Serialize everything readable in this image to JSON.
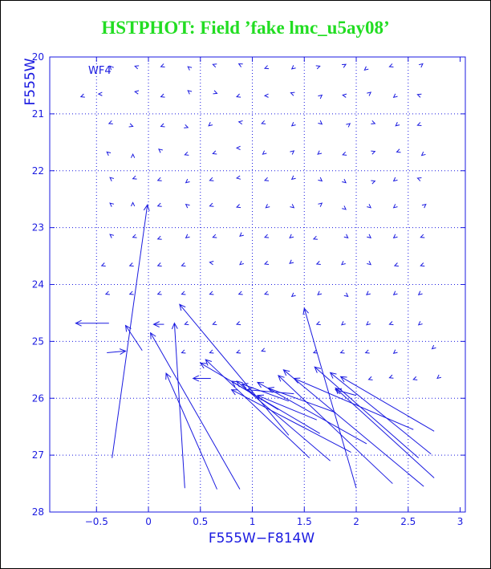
{
  "chart_data": {
    "type": "vector field",
    "title": "HSTPHOT: Field ’fake lmc_u5ay08’",
    "panel_label": "WF4",
    "xlabel": "F555W−F814W",
    "ylabel": "F555W",
    "xlim": [
      -0.95,
      3.05
    ],
    "ylim": [
      28,
      20
    ],
    "x_ticks": [
      -0.5,
      0,
      0.5,
      1,
      1.5,
      2,
      2.5,
      3
    ],
    "x_tick_labels": [
      "−0.5",
      "0",
      "0.5",
      "1",
      "1.5",
      "2",
      "2.5",
      "3"
    ],
    "y_ticks": [
      20,
      21,
      22,
      23,
      24,
      25,
      26,
      27,
      28
    ],
    "y_tick_labels": [
      "20",
      "21",
      "22",
      "23",
      "24",
      "25",
      "26",
      "27",
      "28"
    ],
    "grid": true,
    "grid_style": "dotted",
    "series_color": "#1a1ae0",
    "long_vectors": [
      {
        "x0": -0.35,
        "y0": 27.05,
        "x1": -0.01,
        "y1": 22.6
      },
      {
        "x0": -0.06,
        "y0": 25.16,
        "x1": -0.22,
        "y1": 24.72
      },
      {
        "x0": 0.35,
        "y0": 27.58,
        "x1": 0.25,
        "y1": 24.68
      },
      {
        "x0": 0.66,
        "y0": 27.6,
        "x1": 0.17,
        "y1": 25.56
      },
      {
        "x0": 0.88,
        "y0": 27.6,
        "x1": 0.02,
        "y1": 24.85
      },
      {
        "x0": 1.35,
        "y0": 26.65,
        "x1": 0.3,
        "y1": 24.35
      },
      {
        "x0": 1.65,
        "y0": 26.62,
        "x1": 0.5,
        "y1": 25.38
      },
      {
        "x0": 1.55,
        "y0": 27.05,
        "x1": 0.55,
        "y1": 25.32
      },
      {
        "x0": 1.75,
        "y0": 27.1,
        "x1": 0.85,
        "y1": 25.7
      },
      {
        "x0": 2.0,
        "y0": 27.58,
        "x1": 1.5,
        "y1": 24.42
      },
      {
        "x0": 1.95,
        "y0": 26.95,
        "x1": 0.8,
        "y1": 25.85
      },
      {
        "x0": 2.1,
        "y0": 26.8,
        "x1": 1.05,
        "y1": 25.72
      },
      {
        "x0": 2.35,
        "y0": 27.5,
        "x1": 1.25,
        "y1": 25.6
      },
      {
        "x0": 2.65,
        "y0": 27.55,
        "x1": 1.3,
        "y1": 25.5
      },
      {
        "x0": 2.55,
        "y0": 26.55,
        "x1": 1.4,
        "y1": 25.65
      },
      {
        "x0": 2.6,
        "y0": 27.05,
        "x1": 1.6,
        "y1": 25.45
      },
      {
        "x0": 2.72,
        "y0": 26.98,
        "x1": 1.75,
        "y1": 25.55
      },
      {
        "x0": 2.75,
        "y0": 26.58,
        "x1": 1.85,
        "y1": 25.62
      },
      {
        "x0": 2.75,
        "y0": 27.4,
        "x1": 1.8,
        "y1": 25.82
      },
      {
        "x0": 1.35,
        "y0": 26.05,
        "x1": 0.9,
        "y1": 25.75
      },
      {
        "x0": 1.25,
        "y0": 26.2,
        "x1": 0.8,
        "y1": 25.7
      },
      {
        "x0": 1.4,
        "y0": 25.92,
        "x1": 0.95,
        "y1": 25.85
      },
      {
        "x0": 1.8,
        "y0": 26.25,
        "x1": 1.15,
        "y1": 25.82
      },
      {
        "x0": 1.62,
        "y0": 26.38,
        "x1": 1.05,
        "y1": 25.95
      },
      {
        "x0": -0.4,
        "y0": 25.2,
        "x1": -0.22,
        "y1": 25.17
      },
      {
        "x0": -0.38,
        "y0": 24.68,
        "x1": -0.7,
        "y1": 24.68
      },
      {
        "x0": 0.6,
        "y0": 25.65,
        "x1": 0.43,
        "y1": 25.65
      },
      {
        "x0": 0.15,
        "y0": 24.7,
        "x1": 0.05,
        "y1": 24.7
      },
      {
        "x0": 2.0,
        "y0": 25.95,
        "x1": 1.8,
        "y1": 25.85
      }
    ],
    "short_marks": [
      {
        "x": -0.35,
        "y": 20.2,
        "dx": -0.02,
        "dy": -0.04
      },
      {
        "x": -0.1,
        "y": 20.18,
        "dx": -0.03,
        "dy": -0.02
      },
      {
        "x": 0.15,
        "y": 20.15,
        "dx": -0.03,
        "dy": 0.02
      },
      {
        "x": 0.4,
        "y": 20.2,
        "dx": -0.02,
        "dy": -0.03
      },
      {
        "x": 0.65,
        "y": 20.15,
        "dx": -0.03,
        "dy": -0.02
      },
      {
        "x": 0.9,
        "y": 20.15,
        "dx": -0.03,
        "dy": -0.03
      },
      {
        "x": 1.15,
        "y": 20.18,
        "dx": -0.03,
        "dy": 0.02
      },
      {
        "x": 1.4,
        "y": 20.18,
        "dx": -0.02,
        "dy": 0.03
      },
      {
        "x": 1.62,
        "y": 20.18,
        "dx": 0.03,
        "dy": -0.02
      },
      {
        "x": 1.88,
        "y": 20.15,
        "dx": 0.02,
        "dy": -0.02
      },
      {
        "x": 2.1,
        "y": 20.2,
        "dx": -0.02,
        "dy": 0.03
      },
      {
        "x": 2.35,
        "y": 20.15,
        "dx": -0.03,
        "dy": 0.02
      },
      {
        "x": 2.62,
        "y": 20.15,
        "dx": 0.02,
        "dy": -0.03
      },
      {
        "x": -0.62,
        "y": 20.68,
        "dx": -0.03,
        "dy": 0.02
      },
      {
        "x": -0.45,
        "y": 20.65,
        "dx": -0.03,
        "dy": 0.0
      },
      {
        "x": -0.1,
        "y": 20.62,
        "dx": -0.03,
        "dy": -0.01
      },
      {
        "x": 0.15,
        "y": 20.68,
        "dx": -0.03,
        "dy": 0.02
      },
      {
        "x": 0.4,
        "y": 20.62,
        "dx": -0.02,
        "dy": -0.03
      },
      {
        "x": 0.63,
        "y": 20.62,
        "dx": 0.03,
        "dy": 0.02
      },
      {
        "x": 0.88,
        "y": 20.68,
        "dx": -0.03,
        "dy": 0.02
      },
      {
        "x": 1.15,
        "y": 20.68,
        "dx": -0.03,
        "dy": 0.0
      },
      {
        "x": 1.4,
        "y": 20.65,
        "dx": -0.03,
        "dy": -0.02
      },
      {
        "x": 1.65,
        "y": 20.7,
        "dx": 0.02,
        "dy": -0.03
      },
      {
        "x": 1.9,
        "y": 20.68,
        "dx": -0.03,
        "dy": -0.01
      },
      {
        "x": 2.12,
        "y": 20.65,
        "dx": 0.02,
        "dy": -0.03
      },
      {
        "x": 2.38,
        "y": 20.68,
        "dx": -0.02,
        "dy": 0.03
      },
      {
        "x": 2.62,
        "y": 20.68,
        "dx": -0.03,
        "dy": -0.02
      },
      {
        "x": -0.35,
        "y": 21.15,
        "dx": -0.03,
        "dy": 0.02
      },
      {
        "x": -0.18,
        "y": 21.2,
        "dx": 0.03,
        "dy": 0.02
      },
      {
        "x": 0.15,
        "y": 21.2,
        "dx": -0.03,
        "dy": 0.02
      },
      {
        "x": 0.35,
        "y": 21.22,
        "dx": 0.03,
        "dy": 0.02
      },
      {
        "x": 0.6,
        "y": 21.18,
        "dx": -0.02,
        "dy": 0.03
      },
      {
        "x": 0.9,
        "y": 21.15,
        "dx": -0.03,
        "dy": -0.01
      },
      {
        "x": 1.12,
        "y": 21.15,
        "dx": -0.03,
        "dy": 0.02
      },
      {
        "x": 1.4,
        "y": 21.18,
        "dx": -0.02,
        "dy": 0.03
      },
      {
        "x": 1.65,
        "y": 21.15,
        "dx": 0.02,
        "dy": 0.03
      },
      {
        "x": 1.92,
        "y": 21.2,
        "dx": 0.02,
        "dy": -0.03
      },
      {
        "x": 2.15,
        "y": 21.15,
        "dx": 0.03,
        "dy": 0.02
      },
      {
        "x": 2.4,
        "y": 21.18,
        "dx": -0.02,
        "dy": 0.03
      },
      {
        "x": 2.62,
        "y": 21.18,
        "dx": -0.03,
        "dy": 0.02
      },
      {
        "x": -0.38,
        "y": 21.7,
        "dx": -0.02,
        "dy": -0.03
      },
      {
        "x": -0.15,
        "y": 21.75,
        "dx": 0.0,
        "dy": -0.04
      },
      {
        "x": 0.12,
        "y": 21.65,
        "dx": -0.02,
        "dy": -0.03
      },
      {
        "x": 0.38,
        "y": 21.7,
        "dx": -0.03,
        "dy": 0.02
      },
      {
        "x": 0.65,
        "y": 21.68,
        "dx": -0.03,
        "dy": 0.02
      },
      {
        "x": 0.88,
        "y": 21.6,
        "dx": -0.03,
        "dy": 0.0
      },
      {
        "x": 1.12,
        "y": 21.68,
        "dx": -0.02,
        "dy": 0.03
      },
      {
        "x": 1.38,
        "y": 21.68,
        "dx": 0.02,
        "dy": -0.03
      },
      {
        "x": 1.65,
        "y": 21.68,
        "dx": -0.02,
        "dy": 0.03
      },
      {
        "x": 1.9,
        "y": 21.7,
        "dx": -0.03,
        "dy": 0.02
      },
      {
        "x": 2.15,
        "y": 21.68,
        "dx": 0.03,
        "dy": -0.02
      },
      {
        "x": 2.42,
        "y": 21.65,
        "dx": -0.03,
        "dy": 0.02
      },
      {
        "x": 2.65,
        "y": 21.7,
        "dx": -0.02,
        "dy": 0.03
      },
      {
        "x": -0.35,
        "y": 22.15,
        "dx": -0.02,
        "dy": -0.03
      },
      {
        "x": -0.12,
        "y": 22.12,
        "dx": -0.03,
        "dy": 0.02
      },
      {
        "x": 0.12,
        "y": 22.15,
        "dx": -0.03,
        "dy": 0.02
      },
      {
        "x": 0.38,
        "y": 22.18,
        "dx": -0.02,
        "dy": 0.03
      },
      {
        "x": 0.62,
        "y": 22.15,
        "dx": -0.03,
        "dy": 0.02
      },
      {
        "x": 0.88,
        "y": 22.12,
        "dx": -0.03,
        "dy": 0.01
      },
      {
        "x": 1.15,
        "y": 22.15,
        "dx": -0.03,
        "dy": 0.02
      },
      {
        "x": 1.4,
        "y": 22.12,
        "dx": -0.02,
        "dy": 0.03
      },
      {
        "x": 1.65,
        "y": 22.15,
        "dx": 0.02,
        "dy": 0.03
      },
      {
        "x": 1.88,
        "y": 22.18,
        "dx": 0.02,
        "dy": 0.03
      },
      {
        "x": 2.15,
        "y": 22.2,
        "dx": 0.03,
        "dy": -0.02
      },
      {
        "x": 2.38,
        "y": 22.15,
        "dx": -0.02,
        "dy": 0.03
      },
      {
        "x": 2.62,
        "y": 22.15,
        "dx": -0.03,
        "dy": -0.02
      },
      {
        "x": -0.35,
        "y": 22.6,
        "dx": -0.02,
        "dy": -0.03
      },
      {
        "x": -0.15,
        "y": 22.6,
        "dx": 0.0,
        "dy": -0.04
      },
      {
        "x": 0.12,
        "y": 22.6,
        "dx": -0.03,
        "dy": 0.02
      },
      {
        "x": 0.38,
        "y": 22.62,
        "dx": -0.02,
        "dy": -0.03
      },
      {
        "x": 0.62,
        "y": 22.6,
        "dx": -0.03,
        "dy": 0.02
      },
      {
        "x": 0.88,
        "y": 22.62,
        "dx": -0.03,
        "dy": 0.02
      },
      {
        "x": 1.15,
        "y": 22.62,
        "dx": -0.02,
        "dy": 0.03
      },
      {
        "x": 1.38,
        "y": 22.62,
        "dx": 0.02,
        "dy": 0.03
      },
      {
        "x": 1.65,
        "y": 22.6,
        "dx": 0.02,
        "dy": -0.03
      },
      {
        "x": 1.88,
        "y": 22.65,
        "dx": 0.02,
        "dy": 0.03
      },
      {
        "x": 2.12,
        "y": 22.62,
        "dx": 0.02,
        "dy": 0.03
      },
      {
        "x": 2.38,
        "y": 22.62,
        "dx": -0.02,
        "dy": 0.03
      },
      {
        "x": 2.65,
        "y": 22.62,
        "dx": 0.02,
        "dy": -0.03
      },
      {
        "x": -0.35,
        "y": 23.15,
        "dx": -0.02,
        "dy": -0.03
      },
      {
        "x": -0.12,
        "y": 23.15,
        "dx": -0.03,
        "dy": 0.02
      },
      {
        "x": 0.12,
        "y": 23.18,
        "dx": -0.03,
        "dy": 0.02
      },
      {
        "x": 0.38,
        "y": 23.15,
        "dx": -0.02,
        "dy": 0.03
      },
      {
        "x": 0.65,
        "y": 23.15,
        "dx": -0.03,
        "dy": 0.02
      },
      {
        "x": 0.9,
        "y": 23.12,
        "dx": -0.02,
        "dy": 0.03
      },
      {
        "x": 1.15,
        "y": 23.15,
        "dx": -0.03,
        "dy": 0.02
      },
      {
        "x": 1.38,
        "y": 23.15,
        "dx": -0.02,
        "dy": 0.03
      },
      {
        "x": 1.62,
        "y": 23.18,
        "dx": -0.03,
        "dy": 0.02
      },
      {
        "x": 1.9,
        "y": 23.15,
        "dx": 0.02,
        "dy": 0.03
      },
      {
        "x": 2.12,
        "y": 23.15,
        "dx": 0.02,
        "dy": 0.03
      },
      {
        "x": 2.38,
        "y": 23.15,
        "dx": -0.02,
        "dy": 0.03
      },
      {
        "x": 2.65,
        "y": 23.15,
        "dx": -0.03,
        "dy": 0.02
      },
      {
        "x": -0.42,
        "y": 23.65,
        "dx": -0.03,
        "dy": 0.02
      },
      {
        "x": -0.15,
        "y": 23.65,
        "dx": -0.03,
        "dy": 0.02
      },
      {
        "x": 0.12,
        "y": 23.65,
        "dx": -0.03,
        "dy": 0.02
      },
      {
        "x": 0.35,
        "y": 23.65,
        "dx": -0.03,
        "dy": 0.02
      },
      {
        "x": 0.62,
        "y": 23.62,
        "dx": -0.03,
        "dy": -0.01
      },
      {
        "x": 0.9,
        "y": 23.62,
        "dx": -0.02,
        "dy": 0.03
      },
      {
        "x": 1.15,
        "y": 23.62,
        "dx": -0.03,
        "dy": 0.02
      },
      {
        "x": 1.38,
        "y": 23.6,
        "dx": -0.02,
        "dy": 0.03
      },
      {
        "x": 1.65,
        "y": 23.62,
        "dx": -0.03,
        "dy": 0.02
      },
      {
        "x": 1.88,
        "y": 23.62,
        "dx": -0.02,
        "dy": 0.03
      },
      {
        "x": 2.12,
        "y": 23.62,
        "dx": 0.02,
        "dy": 0.03
      },
      {
        "x": 2.4,
        "y": 23.65,
        "dx": -0.03,
        "dy": 0.02
      },
      {
        "x": 2.65,
        "y": 23.65,
        "dx": -0.03,
        "dy": 0.02
      },
      {
        "x": -0.38,
        "y": 24.15,
        "dx": -0.03,
        "dy": 0.02
      },
      {
        "x": -0.15,
        "y": 24.15,
        "dx": -0.03,
        "dy": 0.02
      },
      {
        "x": 0.12,
        "y": 24.15,
        "dx": -0.03,
        "dy": 0.02
      },
      {
        "x": 0.35,
        "y": 24.15,
        "dx": -0.03,
        "dy": 0.02
      },
      {
        "x": 0.62,
        "y": 24.15,
        "dx": -0.03,
        "dy": 0.02
      },
      {
        "x": 0.9,
        "y": 24.15,
        "dx": -0.03,
        "dy": 0.02
      },
      {
        "x": 1.15,
        "y": 24.15,
        "dx": -0.03,
        "dy": 0.02
      },
      {
        "x": 1.4,
        "y": 24.18,
        "dx": -0.02,
        "dy": 0.03
      },
      {
        "x": 1.65,
        "y": 24.15,
        "dx": -0.02,
        "dy": 0.03
      },
      {
        "x": 1.9,
        "y": 24.18,
        "dx": 0.02,
        "dy": 0.03
      },
      {
        "x": 2.12,
        "y": 24.15,
        "dx": -0.02,
        "dy": 0.03
      },
      {
        "x": 2.38,
        "y": 24.15,
        "dx": -0.02,
        "dy": 0.03
      },
      {
        "x": 2.62,
        "y": 24.15,
        "dx": -0.02,
        "dy": 0.03
      },
      {
        "x": 0.38,
        "y": 24.68,
        "dx": -0.03,
        "dy": 0.02
      },
      {
        "x": 0.65,
        "y": 24.68,
        "dx": -0.03,
        "dy": 0.02
      },
      {
        "x": 0.88,
        "y": 24.68,
        "dx": -0.03,
        "dy": 0.02
      },
      {
        "x": 1.65,
        "y": 24.68,
        "dx": -0.03,
        "dy": 0.02
      },
      {
        "x": 1.88,
        "y": 24.68,
        "dx": -0.02,
        "dy": 0.03
      },
      {
        "x": 2.12,
        "y": 24.68,
        "dx": -0.02,
        "dy": 0.03
      },
      {
        "x": 2.35,
        "y": 24.68,
        "dx": -0.03,
        "dy": 0.02
      },
      {
        "x": 2.62,
        "y": 24.68,
        "dx": -0.02,
        "dy": 0.03
      },
      {
        "x": 0.35,
        "y": 25.18,
        "dx": -0.03,
        "dy": 0.02
      },
      {
        "x": 0.62,
        "y": 25.18,
        "dx": -0.03,
        "dy": 0.02
      },
      {
        "x": 0.88,
        "y": 25.18,
        "dx": -0.03,
        "dy": 0.02
      },
      {
        "x": 1.12,
        "y": 25.15,
        "dx": -0.03,
        "dy": 0.02
      },
      {
        "x": 1.62,
        "y": 25.18,
        "dx": -0.03,
        "dy": 0.02
      },
      {
        "x": 1.88,
        "y": 25.18,
        "dx": -0.03,
        "dy": 0.02
      },
      {
        "x": 2.12,
        "y": 25.18,
        "dx": -0.03,
        "dy": 0.02
      },
      {
        "x": 2.38,
        "y": 25.18,
        "dx": -0.02,
        "dy": 0.03
      },
      {
        "x": 2.75,
        "y": 25.1,
        "dx": -0.02,
        "dy": 0.03
      },
      {
        "x": 2.15,
        "y": 25.65,
        "dx": -0.03,
        "dy": 0.02
      },
      {
        "x": 2.35,
        "y": 25.62,
        "dx": -0.03,
        "dy": 0.02
      },
      {
        "x": 2.58,
        "y": 25.65,
        "dx": -0.03,
        "dy": 0.02
      },
      {
        "x": 2.8,
        "y": 25.62,
        "dx": -0.02,
        "dy": 0.03
      }
    ]
  }
}
